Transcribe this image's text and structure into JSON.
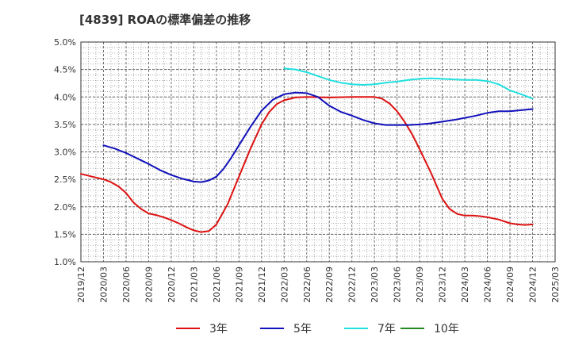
{
  "chart_data": {
    "type": "line",
    "title": "[4839]  ROAの標準偏差の推移",
    "y_tick_labels": [
      "5.0%",
      "4.5%",
      "4.0%",
      "3.5%",
      "3.0%",
      "2.5%",
      "2.0%",
      "1.5%",
      "1.0%"
    ],
    "y_ticks": [
      5.0,
      4.5,
      4.0,
      3.5,
      3.0,
      2.5,
      2.0,
      1.5,
      1.0
    ],
    "ylim": [
      1.0,
      5.0
    ],
    "x_tick_labels": [
      "2019/12",
      "2020/03",
      "2020/06",
      "2020/09",
      "2020/12",
      "2021/03",
      "2021/06",
      "2021/09",
      "2021/12",
      "2022/03",
      "2022/06",
      "2022/09",
      "2022/12",
      "2023/03",
      "2023/06",
      "2023/09",
      "2023/12",
      "2024/03",
      "2024/06",
      "2024/09",
      "2024/12",
      "2025/03"
    ],
    "grid": true,
    "legend_position": "bottom",
    "series": [
      {
        "name": "3年",
        "color": "#dd1111",
        "x": [
          0,
          0.5,
          1,
          1.33,
          1.67,
          2,
          2.33,
          2.67,
          3,
          3.33,
          3.67,
          4,
          4.33,
          4.67,
          5,
          5.33,
          5.67,
          6,
          6.5,
          7,
          7.5,
          8,
          8.33,
          8.67,
          9,
          9.5,
          10,
          11,
          12,
          12.5,
          13,
          13.33,
          13.67,
          14,
          14.33,
          14.67,
          15,
          15.5,
          16,
          16.33,
          16.67,
          17,
          17.33,
          17.67,
          18,
          18.5,
          19,
          19.33,
          19.67,
          20
        ],
        "values": [
          2.6,
          2.55,
          2.5,
          2.45,
          2.37,
          2.25,
          2.08,
          1.96,
          1.88,
          1.85,
          1.81,
          1.76,
          1.7,
          1.63,
          1.57,
          1.54,
          1.56,
          1.68,
          2.05,
          2.55,
          3.05,
          3.5,
          3.72,
          3.87,
          3.94,
          3.99,
          4.0,
          3.99,
          4.0,
          4.0,
          4.0,
          3.97,
          3.88,
          3.74,
          3.55,
          3.32,
          3.05,
          2.62,
          2.15,
          1.96,
          1.87,
          1.84,
          1.84,
          1.83,
          1.81,
          1.77,
          1.7,
          1.68,
          1.67,
          1.68
        ]
      },
      {
        "name": "5年",
        "color": "#1111bb",
        "x": [
          1,
          1.5,
          2,
          2.5,
          3,
          3.5,
          4,
          4.5,
          5,
          5.33,
          5.67,
          6,
          6.33,
          6.67,
          7,
          7.5,
          8,
          8.5,
          9,
          9.5,
          10,
          10.5,
          11,
          11.5,
          12,
          12.5,
          13,
          13.5,
          14,
          14.5,
          15,
          15.5,
          16,
          16.5,
          17,
          17.5,
          18,
          18.5,
          19,
          19.5,
          20
        ],
        "values": [
          3.12,
          3.06,
          2.98,
          2.88,
          2.78,
          2.67,
          2.58,
          2.51,
          2.46,
          2.45,
          2.48,
          2.55,
          2.7,
          2.9,
          3.12,
          3.45,
          3.75,
          3.95,
          4.05,
          4.08,
          4.07,
          4.0,
          3.84,
          3.73,
          3.66,
          3.58,
          3.52,
          3.49,
          3.49,
          3.49,
          3.5,
          3.52,
          3.55,
          3.58,
          3.62,
          3.66,
          3.71,
          3.74,
          3.74,
          3.76,
          3.78
        ]
      },
      {
        "name": "7年",
        "color": "#22e0e0",
        "x": [
          9,
          9.5,
          10,
          10.5,
          11,
          11.5,
          12,
          12.5,
          13,
          13.5,
          14,
          14.5,
          15,
          15.5,
          16,
          16.5,
          17,
          17.5,
          18,
          18.5,
          19,
          19.5,
          20
        ],
        "values": [
          4.52,
          4.5,
          4.45,
          4.38,
          4.31,
          4.26,
          4.23,
          4.22,
          4.23,
          4.26,
          4.28,
          4.31,
          4.33,
          4.34,
          4.33,
          4.32,
          4.31,
          4.31,
          4.29,
          4.23,
          4.12,
          4.05,
          3.97
        ]
      },
      {
        "name": "10年",
        "color": "#228b22",
        "x": [],
        "values": []
      }
    ]
  }
}
